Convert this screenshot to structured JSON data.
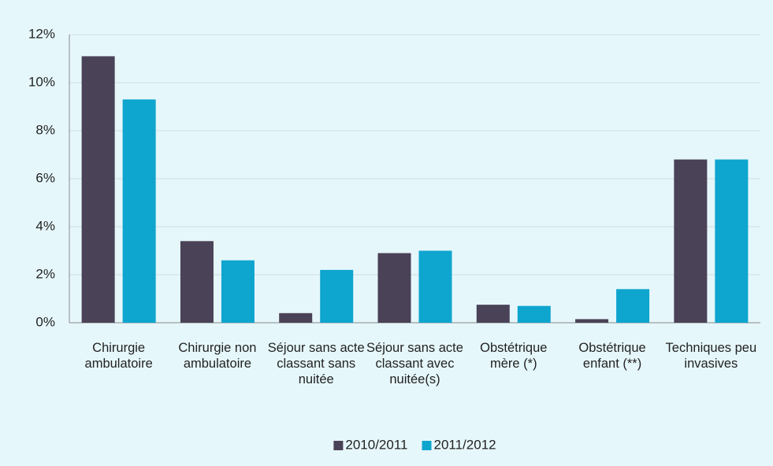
{
  "chart_data": {
    "type": "bar",
    "categories": [
      "Chirurgie ambulatoire",
      "Chirurgie non ambulatoire",
      "Séjour sans acte classant sans nuitée",
      "Séjour sans acte classant avec nuitée(s)",
      "Obstétrique mère (*)",
      "Obstétrique enfant (**)",
      "Techniques peu invasives"
    ],
    "series": [
      {
        "name": "2010/2011",
        "color": "#4a4257",
        "values": [
          11.1,
          3.4,
          0.4,
          2.9,
          0.75,
          0.15,
          6.8
        ]
      },
      {
        "name": "2011/2012",
        "color": "#0ea5cf",
        "values": [
          9.3,
          2.6,
          2.2,
          3.0,
          0.7,
          1.4,
          6.8
        ]
      }
    ],
    "ylim": [
      0,
      12
    ],
    "yticks": [
      {
        "value": 0,
        "label": "0%"
      },
      {
        "value": 2,
        "label": "2%"
      },
      {
        "value": 4,
        "label": "4%"
      },
      {
        "value": 6,
        "label": "6%"
      },
      {
        "value": 8,
        "label": "8%"
      },
      {
        "value": 10,
        "label": "10%"
      },
      {
        "value": 12,
        "label": "12%"
      }
    ],
    "grid": true,
    "legend": "bottom"
  }
}
